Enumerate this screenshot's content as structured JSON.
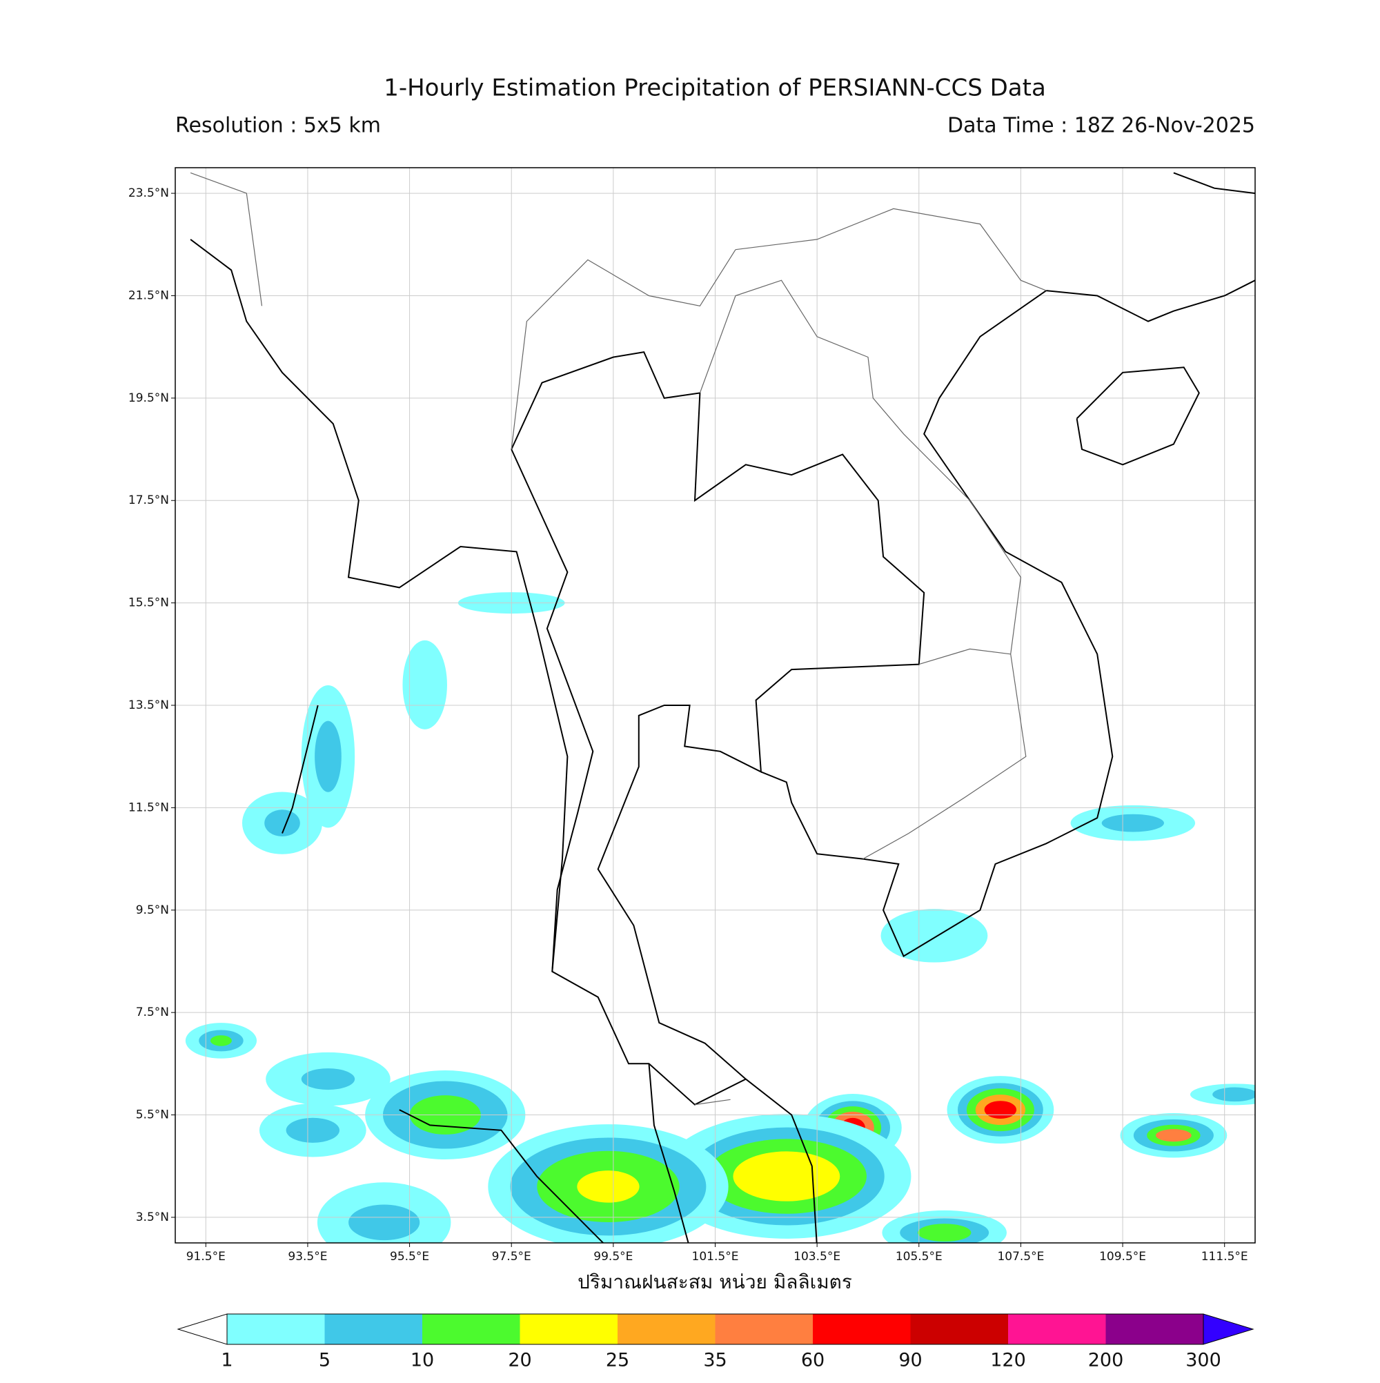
{
  "title": "1-Hourly Estimation Precipitation of PERSIANN-CCS Data",
  "resolution": "Resolution : 5x5 km",
  "data_time": "Data Time : 18Z 26-Nov-2025",
  "map": {
    "xlim": [
      90.9,
      112.1
    ],
    "ylim": [
      3.0,
      24.0
    ],
    "grid": true,
    "xticks": [
      {
        "value": 91.5,
        "label": "91.5°E"
      },
      {
        "value": 93.5,
        "label": "93.5°E"
      },
      {
        "value": 95.5,
        "label": "95.5°E"
      },
      {
        "value": 97.5,
        "label": "97.5°E"
      },
      {
        "value": 99.5,
        "label": "99.5°E"
      },
      {
        "value": 101.5,
        "label": "101.5°E"
      },
      {
        "value": 103.5,
        "label": "103.5°E"
      },
      {
        "value": 105.5,
        "label": "105.5°E"
      },
      {
        "value": 107.5,
        "label": "107.5°E"
      },
      {
        "value": 109.5,
        "label": "109.5°E"
      },
      {
        "value": 111.5,
        "label": "111.5°E"
      }
    ],
    "yticks": [
      {
        "value": 23.5,
        "label": "23.5°N"
      },
      {
        "value": 21.5,
        "label": "21.5°N"
      },
      {
        "value": 19.5,
        "label": "19.5°N"
      },
      {
        "value": 17.5,
        "label": "17.5°N"
      },
      {
        "value": 15.5,
        "label": "15.5°N"
      },
      {
        "value": 13.5,
        "label": "13.5°N"
      },
      {
        "value": 11.5,
        "label": "11.5°N"
      },
      {
        "value": 9.5,
        "label": "9.5°N"
      },
      {
        "value": 7.5,
        "label": "7.5°N"
      },
      {
        "value": 5.5,
        "label": "5.5°N"
      },
      {
        "value": 3.5,
        "label": "3.5°N"
      }
    ]
  },
  "xlabel": "ปริมาณฝนสะสม หน่วย มิลลิเมตร",
  "colorbar": {
    "levels": [
      1,
      5,
      10,
      20,
      25,
      35,
      60,
      90,
      120,
      200,
      300
    ],
    "colors": [
      "#80ffff",
      "#40c8e8",
      "#4cfa2e",
      "#ffff00",
      "#ffa820",
      "#ff7f40",
      "#ff0000",
      "#cc0000",
      "#ff1493",
      "#8b008b"
    ],
    "under": "#ffffff",
    "over": "#3300ff"
  }
}
